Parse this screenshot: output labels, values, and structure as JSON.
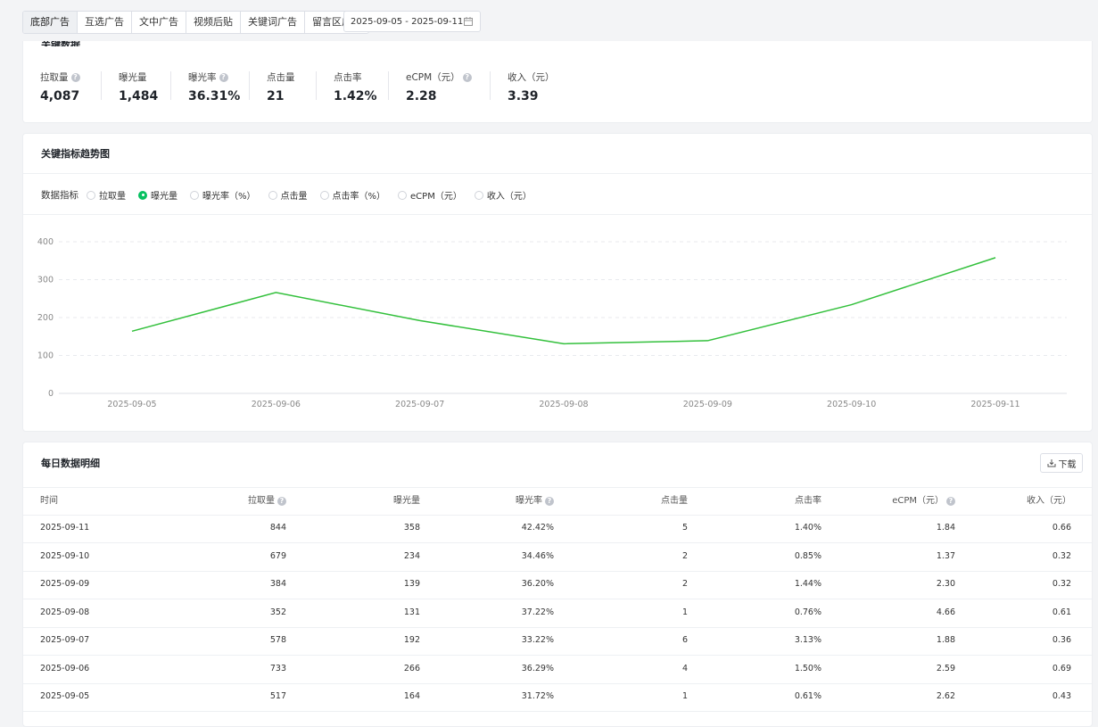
{
  "tabs": [
    "底部广告",
    "互选广告",
    "文中广告",
    "视频后贴",
    "关键词广告",
    "留言区广告"
  ],
  "date_range": "2025-09-05 - 2025-09-11",
  "key_data": {
    "title": "关键数据",
    "items": [
      {
        "label": "拉取量",
        "value": "4,087",
        "help": true
      },
      {
        "label": "曝光量",
        "value": "1,484",
        "help": false
      },
      {
        "label": "曝光率",
        "value": "36.31%",
        "help": true
      },
      {
        "label": "点击量",
        "value": "21",
        "help": false
      },
      {
        "label": "点击率",
        "value": "1.42%",
        "help": false
      },
      {
        "label": "eCPM（元）",
        "value": "2.28",
        "help": true
      },
      {
        "label": "收入（元）",
        "value": "3.39",
        "help": false
      }
    ]
  },
  "trend": {
    "title": "关键指标趋势图",
    "metric_label": "数据指标",
    "metrics": [
      {
        "label": "拉取量",
        "checked": false
      },
      {
        "label": "曝光量",
        "checked": true
      },
      {
        "label": "曝光率（%）",
        "checked": false
      },
      {
        "label": "点击量",
        "checked": false
      },
      {
        "label": "点击率（%）",
        "checked": false
      },
      {
        "label": "eCPM（元）",
        "checked": false
      },
      {
        "label": "收入（元）",
        "checked": false
      }
    ]
  },
  "chart_data": {
    "type": "line",
    "x": [
      "2025-09-05",
      "2025-09-06",
      "2025-09-07",
      "2025-09-08",
      "2025-09-09",
      "2025-09-10",
      "2025-09-11"
    ],
    "series": [
      {
        "values": [
          164,
          266,
          192,
          131,
          139,
          234,
          358
        ],
        "color": "#33c03c"
      }
    ],
    "yticks": [
      0,
      100,
      200,
      300,
      400
    ],
    "ylim": [
      0,
      400
    ],
    "grid": true
  },
  "table": {
    "title": "每日数据明细",
    "download_label": "下载",
    "headers": [
      {
        "label": "时间",
        "help": false
      },
      {
        "label": "拉取量",
        "help": true
      },
      {
        "label": "曝光量",
        "help": false
      },
      {
        "label": "曝光率",
        "help": true
      },
      {
        "label": "点击量",
        "help": false
      },
      {
        "label": "点击率",
        "help": false
      },
      {
        "label": "eCPM（元）",
        "help": true
      },
      {
        "label": "收入（元）",
        "help": false
      }
    ],
    "rows": [
      [
        "2025-09-11",
        "844",
        "358",
        "42.42%",
        "5",
        "1.40%",
        "1.84",
        "0.66"
      ],
      [
        "2025-09-10",
        "679",
        "234",
        "34.46%",
        "2",
        "0.85%",
        "1.37",
        "0.32"
      ],
      [
        "2025-09-09",
        "384",
        "139",
        "36.20%",
        "2",
        "1.44%",
        "2.30",
        "0.32"
      ],
      [
        "2025-09-08",
        "352",
        "131",
        "37.22%",
        "1",
        "0.76%",
        "4.66",
        "0.61"
      ],
      [
        "2025-09-07",
        "578",
        "192",
        "33.22%",
        "6",
        "3.13%",
        "1.88",
        "0.36"
      ],
      [
        "2025-09-06",
        "733",
        "266",
        "36.29%",
        "4",
        "1.50%",
        "2.59",
        "0.69"
      ],
      [
        "2025-09-05",
        "517",
        "164",
        "31.72%",
        "1",
        "0.61%",
        "2.62",
        "0.43"
      ]
    ]
  }
}
